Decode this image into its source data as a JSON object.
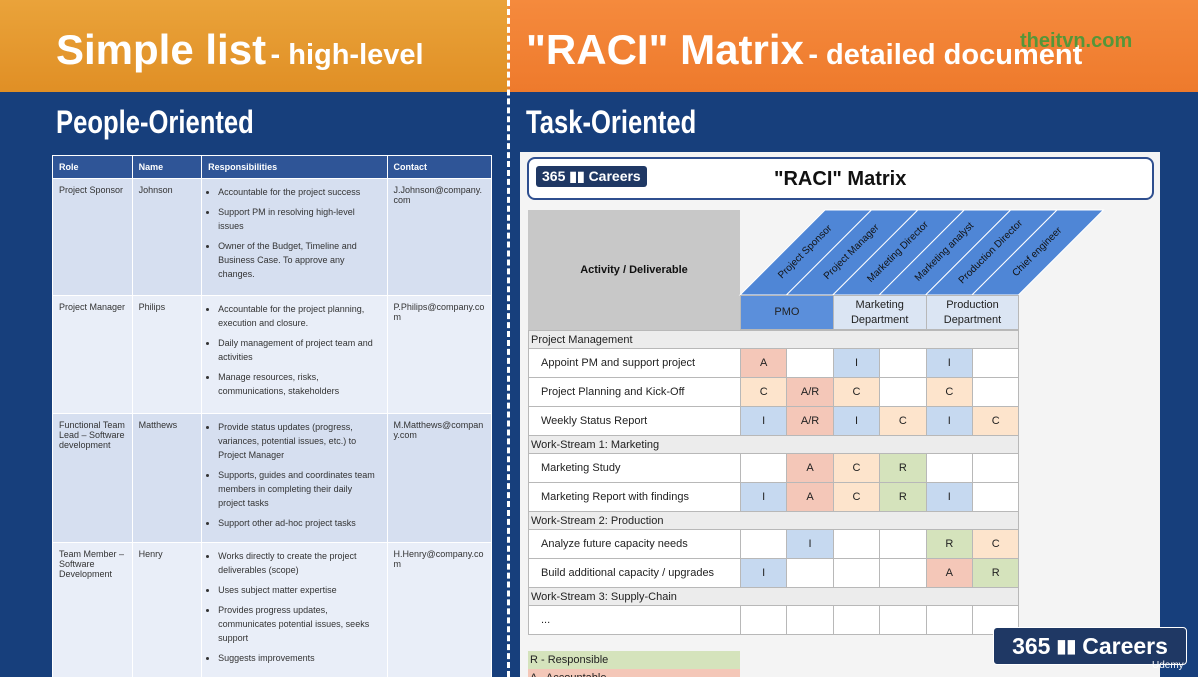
{
  "header": {
    "left_title": "Simple list",
    "left_subtitle": "- high-level",
    "right_title": "\"RACI\" Matrix",
    "right_subtitle": "- detailed document",
    "watermark": "theitvn.com"
  },
  "people": {
    "heading": "People-Oriented",
    "columns": [
      "Role",
      "Name",
      "Responsibilities",
      "Contact"
    ],
    "rows": [
      {
        "role": "Project Sponsor",
        "name": "Johnson",
        "responsibilities": [
          "Accountable for the project success",
          "Support PM in resolving high-level issues",
          "Owner of the Budget, Timeline and Business Case. To approve any changes."
        ],
        "contact": "J.Johnson@company.com"
      },
      {
        "role": "Project Manager",
        "name": "Philips",
        "responsibilities": [
          "Accountable for the project planning, execution and closure.",
          "Daily management of project team and activities",
          "Manage resources, risks, communications, stakeholders"
        ],
        "contact": "P.Philips@company.com"
      },
      {
        "role": "Functional Team Lead – Software development",
        "name": "Matthews",
        "responsibilities": [
          "Provide status updates (progress, variances, potential issues, etc.) to Project Manager",
          "Supports, guides and coordinates team members in completing their daily project tasks",
          "Support other ad-hoc project tasks"
        ],
        "contact": "M.Matthews@company.com"
      },
      {
        "role": "Team Member – Software Development",
        "name": "Henry",
        "responsibilities": [
          "Works directly to create the project deliverables (scope)",
          "Uses subject matter expertise",
          "Provides progress updates, communicates potential issues, seeks support",
          "Suggests improvements"
        ],
        "contact": "H.Henry@company.com"
      }
    ]
  },
  "raci": {
    "heading": "Task-Oriented",
    "logo": {
      "number": "365",
      "word": "Careers"
    },
    "title": "\"RACI\" Matrix",
    "activity_header": "Activity / Deliverable",
    "roles": [
      "Project Sponsor",
      "Project Manager",
      "Marketing Director",
      "Marketing analyst",
      "Production Director",
      "Chief engineer"
    ],
    "groups": [
      "PMO",
      "Marketing Department",
      "Production Department"
    ],
    "rows": [
      {
        "section": "Project Management"
      },
      {
        "activity": "Appoint PM and support project",
        "cells": [
          "A",
          null,
          "I",
          null,
          "I",
          null
        ]
      },
      {
        "activity": "Project Planning and Kick-Off",
        "cells": [
          "C",
          "A/R",
          "C",
          null,
          "C",
          null
        ]
      },
      {
        "activity": "Weekly Status Report",
        "cells": [
          "I",
          "A/R",
          "I",
          "C",
          "I",
          "C"
        ]
      },
      {
        "section": "Work-Stream 1: Marketing"
      },
      {
        "activity": "Marketing Study",
        "cells": [
          null,
          "A",
          "C",
          "R",
          null,
          null
        ]
      },
      {
        "activity": "Marketing Report with findings",
        "cells": [
          "I",
          "A",
          "C",
          "R",
          "I",
          null
        ]
      },
      {
        "section": "Work-Stream 2: Production"
      },
      {
        "activity": "Analyze future capacity needs",
        "cells": [
          null,
          "I",
          null,
          null,
          "R",
          "C"
        ]
      },
      {
        "activity": "Build additional capacity / upgrades",
        "cells": [
          "I",
          null,
          null,
          null,
          "A",
          "R"
        ]
      },
      {
        "section": "Work-Stream 3: Supply-Chain"
      },
      {
        "activity": "...",
        "cells": [
          null,
          null,
          null,
          null,
          null,
          null
        ]
      }
    ],
    "legend": [
      "R - Responsible",
      "A - Accountable"
    ]
  },
  "brand": {
    "number": "365",
    "word": "Careers"
  },
  "platform": "Udemy"
}
